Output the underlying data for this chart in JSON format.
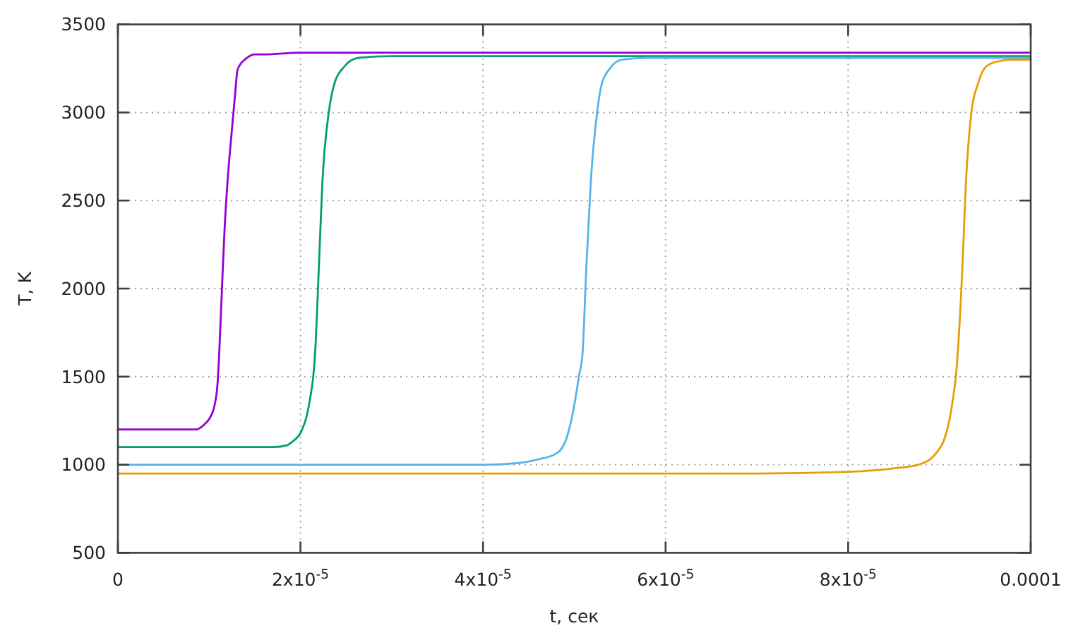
{
  "chart_data": {
    "type": "line",
    "xlabel": "t, сек",
    "ylabel": "T, K",
    "xlim": [
      0,
      0.0001
    ],
    "xticks": [
      0,
      {
        "value": 2e-05,
        "label": "2x10$^{-5}$"
      },
      {
        "value": 4e-05,
        "label": "4x10$^{-5}$"
      },
      {
        "value": 6e-05,
        "label": "6x10$^{-5}$"
      },
      {
        "value": 8e-05,
        "label": "8x10$^{-5}$"
      },
      0.0001
    ],
    "ylim": [
      500,
      3500
    ],
    "yticks": [
      500,
      1000,
      1500,
      2000,
      2500,
      3000,
      3500
    ],
    "grid": true,
    "series": [
      {
        "color": "#9400d3",
        "x": [
          0,
          5e-06,
          8.5e-06,
          9.5e-06,
          1e-05,
          1.06e-05,
          1.09e-05,
          1.11e-05,
          1.14e-05,
          1.17e-05,
          1.2e-05,
          1.24e-05,
          1.28e-05,
          1.31e-05,
          1.35e-05,
          1.39e-05,
          1.49e-05,
          1.6e-05,
          2e-05,
          4e-05,
          6e-05,
          8e-05,
          0.0001
        ],
        "values": [
          1200,
          1200,
          1200,
          1230,
          1260,
          1340,
          1450,
          1630,
          2000,
          2350,
          2600,
          2850,
          3080,
          3240,
          3280,
          3300,
          3330,
          3330,
          3340,
          3340,
          3340,
          3340,
          3340
        ]
      },
      {
        "color": "#009e73",
        "x": [
          0,
          1e-05,
          1.7e-05,
          1.85e-05,
          1.91e-05,
          2.01e-05,
          2.07e-05,
          2.11e-05,
          2.14e-05,
          2.16e-05,
          2.2e-05,
          2.24e-05,
          2.31e-05,
          2.37e-05,
          2.48e-05,
          2.63e-05,
          3e-05,
          6e-05,
          0.0001
        ],
        "values": [
          1100,
          1100,
          1100,
          1110,
          1130,
          1190,
          1280,
          1390,
          1500,
          1630,
          2100,
          2600,
          3000,
          3160,
          3260,
          3310,
          3320,
          3320,
          3320
        ]
      },
      {
        "color": "#56b4e9",
        "x": [
          0,
          2e-05,
          4e-05,
          4.4e-05,
          4.6e-05,
          4.79e-05,
          4.9e-05,
          4.97e-05,
          5.02e-05,
          5.05e-05,
          5.09e-05,
          5.13e-05,
          5.18e-05,
          5.25e-05,
          5.3e-05,
          5.39e-05,
          5.52e-05,
          5.8e-05,
          7e-05,
          0.0001
        ],
        "values": [
          1000,
          1000,
          1000,
          1010,
          1030,
          1060,
          1130,
          1260,
          1400,
          1500,
          1630,
          2100,
          2600,
          3000,
          3160,
          3250,
          3300,
          3310,
          3310,
          3310
        ]
      },
      {
        "color": "#e69f00",
        "x": [
          0,
          4e-05,
          7e-05,
          8e-05,
          8.51e-05,
          8.77e-05,
          8.97e-05,
          9.05e-05,
          9.1e-05,
          9.15e-05,
          9.18e-05,
          9.2e-05,
          9.25e-05,
          9.29e-05,
          9.35e-05,
          9.42e-05,
          9.51e-05,
          9.64e-05,
          9.8e-05,
          0.0001
        ],
        "values": [
          950,
          950,
          950,
          960,
          980,
          1000,
          1070,
          1140,
          1230,
          1380,
          1500,
          1630,
          2100,
          2600,
          3000,
          3160,
          3260,
          3290,
          3300,
          3300
        ]
      }
    ]
  }
}
